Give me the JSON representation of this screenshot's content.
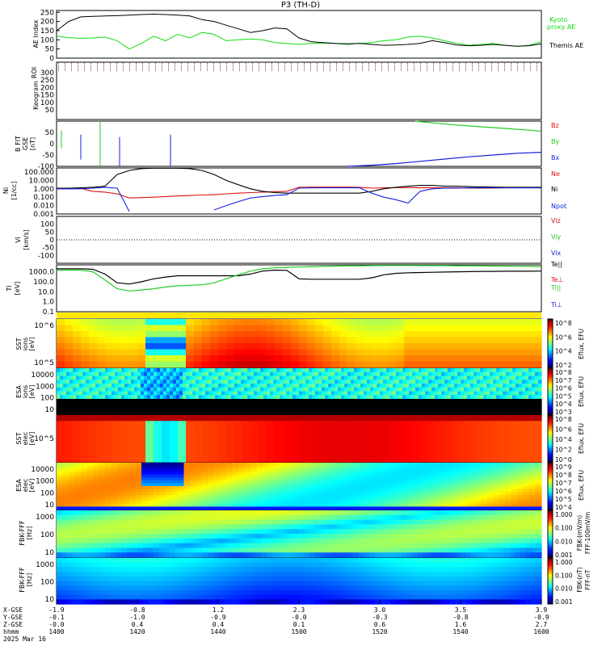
{
  "title": "P3 (TH-D)",
  "colors": {
    "black": "#000000",
    "green": "#22cc22",
    "red": "#dd1111",
    "blue": "#1122dd",
    "kyoto": "#11dd11"
  },
  "time_axis": {
    "range": [
      1400,
      1600
    ],
    "tick_labels": [
      "1400",
      "1420",
      "1440",
      "1500",
      "1520",
      "1540",
      "1600"
    ],
    "x_gse": [
      "-1.9",
      "-0.8",
      "1.2",
      "2.3",
      "3.0",
      "3.5",
      "3.9"
    ],
    "y_gse": [
      "-0.1",
      "-1.0",
      "-0.9",
      "-0.0",
      "-0.3",
      "-0.8",
      "-0.9"
    ],
    "z_gse": [
      "-0.0",
      "0.4",
      "0.4",
      "0.1",
      "0.6",
      "1.6",
      "2.7"
    ],
    "row_labels": [
      "X-GSE",
      "Y-GSE",
      "Z-GSE",
      "hhmm"
    ],
    "date": "2025 Mar 16"
  },
  "chart_data": [
    {
      "type": "line",
      "panel": "ae",
      "ylabel": "AE Index",
      "ylim": [
        0,
        260
      ],
      "yticks": [
        "250",
        "200",
        "150",
        "100",
        "50",
        "0"
      ],
      "legend": [
        "Kyoto",
        "proxy AE",
        "Themis AE"
      ],
      "x": [
        1400,
        1405,
        1410,
        1415,
        1420,
        1425,
        1430,
        1435,
        1440,
        1445,
        1450,
        1455,
        1460,
        1465,
        1470,
        1475,
        1480,
        1485,
        1490,
        1495,
        1500,
        1505,
        1510,
        1515,
        1520,
        1525,
        1530,
        1535,
        1540,
        1545,
        1550,
        1555,
        1560,
        1565,
        1570,
        1575,
        1580,
        1585,
        1590,
        1595,
        1600
      ],
      "series": [
        {
          "name": "Kyoto proxy AE",
          "color": "#11dd11",
          "values": [
            120,
            112,
            108,
            110,
            115,
            95,
            50,
            80,
            120,
            95,
            130,
            110,
            140,
            130,
            95,
            100,
            105,
            100,
            85,
            80,
            75,
            80,
            82,
            80,
            75,
            80,
            85,
            95,
            100,
            115,
            120,
            110,
            95,
            80,
            70,
            75,
            80,
            70,
            65,
            70,
            90
          ]
        },
        {
          "name": "Themis AE",
          "color": "#000000",
          "values": [
            150,
            200,
            225,
            228,
            230,
            232,
            235,
            238,
            240,
            238,
            235,
            230,
            210,
            200,
            180,
            160,
            140,
            150,
            165,
            160,
            110,
            90,
            85,
            80,
            78,
            80,
            75,
            70,
            72,
            75,
            80,
            95,
            85,
            72,
            68,
            70,
            75,
            70,
            65,
            68,
            78
          ]
        }
      ]
    },
    {
      "type": "heatmap",
      "panel": "keogram",
      "ylabel": "Keogram",
      "yticks": [
        "300",
        "250",
        "200",
        "150",
        "100",
        "50"
      ],
      "note": "no data"
    },
    {
      "type": "line",
      "panel": "b_fgm",
      "ylabel": "B FIT GSE [nT]",
      "ylim": [
        -100,
        100
      ],
      "yticks": [
        "50",
        "0",
        "-50",
        "-100"
      ],
      "legend": [
        "Bz",
        "By",
        "Bx"
      ],
      "series": [
        {
          "name": "Bz",
          "color": "#dd1111",
          "values": []
        },
        {
          "name": "By",
          "color": "#22cc22",
          "x": [
            1548,
            1555,
            1565,
            1575,
            1585,
            1595,
            1600
          ],
          "values": [
            100,
            92,
            83,
            75,
            68,
            60,
            55
          ]
        },
        {
          "name": "Bx",
          "color": "#1122dd",
          "x": [
            1520,
            1530,
            1540,
            1550,
            1560,
            1570,
            1580,
            1590,
            1600
          ],
          "values": [
            -100,
            -95,
            -88,
            -78,
            -68,
            -58,
            -50,
            -42,
            -38
          ]
        }
      ]
    },
    {
      "type": "line",
      "panel": "ni",
      "ylabel": "Ni [1/cc]",
      "log": true,
      "ylim": [
        0.001,
        300
      ],
      "yticks": [
        "100.000",
        "10.000",
        "1.000",
        "0.100",
        "0.010",
        "0.001"
      ],
      "legend": [
        "Ne",
        "Ni",
        "Npot"
      ],
      "x": [
        1400,
        1405,
        1410,
        1415,
        1420,
        1425,
        1430,
        1435,
        1440,
        1445,
        1450,
        1455,
        1460,
        1465,
        1470,
        1475,
        1480,
        1485,
        1490,
        1495,
        1500,
        1505,
        1510,
        1515,
        1520,
        1525,
        1530,
        1535,
        1540,
        1545,
        1550,
        1555,
        1560,
        1565,
        1570,
        1575,
        1580,
        1585,
        1590,
        1595,
        1600
      ],
      "series": [
        {
          "name": "Ne",
          "color": "#dd1111",
          "values": [
            1.0,
            1.0,
            1.1,
            0.5,
            0.4,
            0.25,
            0.08,
            0.09,
            0.1,
            0.12,
            0.14,
            0.16,
            0.18,
            0.2,
            0.25,
            0.3,
            0.35,
            0.4,
            0.45,
            0.5,
            1.5,
            1.6,
            1.6,
            1.6,
            1.6,
            1.5,
            1.2,
            1.3,
            1.4,
            1.4,
            1.3,
            1.3,
            1.3,
            1.3,
            1.2,
            1.2,
            1.2,
            1.3,
            1.3,
            1.3,
            1.3
          ]
        },
        {
          "name": "Ni",
          "color": "#000000",
          "values": [
            1.2,
            1.2,
            1.3,
            1.5,
            2.0,
            50,
            150,
            250,
            280,
            280,
            280,
            250,
            150,
            50,
            10,
            3,
            1.0,
            0.5,
            0.35,
            0.3,
            0.3,
            0.3,
            0.3,
            0.3,
            0.3,
            0.3,
            0.5,
            1.0,
            1.5,
            2.0,
            2.5,
            2.5,
            2.0,
            2.0,
            1.8,
            1.7,
            1.6,
            1.5,
            1.5,
            1.5,
            1.5
          ]
        },
        {
          "name": "Npot",
          "color": "#1122dd",
          "values": [
            1.0,
            1.0,
            1.0,
            1.2,
            1.5,
            1.2,
            0.002,
            null,
            null,
            null,
            null,
            null,
            null,
            0.003,
            0.01,
            0.03,
            0.08,
            0.12,
            0.16,
            0.2,
            1.2,
            1.3,
            1.3,
            1.3,
            1.3,
            1.3,
            0.3,
            0.1,
            0.05,
            0.02,
            0.5,
            1.0,
            1.2,
            1.2,
            1.3,
            1.3,
            1.3,
            1.3,
            1.3,
            1.3,
            1.3
          ]
        }
      ]
    },
    {
      "type": "line",
      "panel": "vi",
      "ylabel": "Vi [km/s]",
      "ylim": [
        -150,
        150
      ],
      "yticks": [
        "100",
        "50",
        "0",
        "-50",
        "-100"
      ],
      "legend": [
        "Viz",
        "Viy",
        "Vix"
      ],
      "series": []
    },
    {
      "type": "line",
      "panel": "ti",
      "ylabel": "Ti [eV]",
      "log": true,
      "ylim": [
        0.1,
        5000
      ],
      "yticks": [
        "1000.0",
        "100.0",
        "10.0",
        "1.0",
        "0.1"
      ],
      "legend": [
        "Te||",
        "Te⊥",
        "Ti||",
        "Ti⊥"
      ],
      "x": [
        1400,
        1405,
        1410,
        1415,
        1420,
        1425,
        1430,
        1435,
        1440,
        1445,
        1450,
        1455,
        1460,
        1465,
        1470,
        1475,
        1480,
        1485,
        1490,
        1495,
        1500,
        1505,
        1510,
        1515,
        1520,
        1525,
        1530,
        1535,
        1540,
        1545,
        1550,
        1555,
        1560,
        1565,
        1570,
        1575,
        1580,
        1585,
        1590,
        1595,
        1600
      ],
      "series": [
        {
          "name": "Te||",
          "color": "#000000",
          "values": [
            2000,
            2000,
            2000,
            1800,
            600,
            80,
            60,
            100,
            200,
            300,
            400,
            400,
            400,
            400,
            400,
            400,
            600,
            1200,
            1500,
            1400,
            200,
            180,
            180,
            180,
            180,
            180,
            250,
            500,
            700,
            800,
            850,
            900,
            950,
            1000,
            1050,
            1100,
            1100,
            1150,
            1150,
            1150,
            1200
          ]
        },
        {
          "name": "Ti||",
          "color": "#22cc22",
          "values": [
            1500,
            1500,
            1500,
            1000,
            150,
            20,
            12,
            15,
            20,
            30,
            40,
            45,
            50,
            80,
            200,
            500,
            1200,
            2000,
            2500,
            2800,
            3000,
            3200,
            3500,
            3800,
            4000,
            4000,
            4200,
            4300,
            4300,
            4300,
            4200,
            4200,
            4200,
            4100,
            4000,
            3900,
            3800,
            3700,
            3600,
            3500,
            3400
          ]
        }
      ]
    },
    {
      "type": "heatmap",
      "panel": "sst_ions",
      "ylabel": "SST ions [eV]",
      "colorbar": {
        "label": "Eflux, EFU",
        "ticks": [
          "10^8",
          "10^6",
          "10^4",
          "10^2"
        ]
      },
      "yticks": [
        "10^6",
        "10^5"
      ]
    },
    {
      "type": "heatmap",
      "panel": "esa_ions",
      "ylabel": "ESA ions [eV]",
      "yticks": [
        "10000",
        "1000",
        "100",
        "10"
      ],
      "colorbar": {
        "label": "Eflux, EFU",
        "ticks": [
          "10^8",
          "10^7",
          "10^6",
          "10^5",
          "10^4",
          "10^3"
        ]
      }
    },
    {
      "type": "heatmap",
      "panel": "sst_elec",
      "ylabel": "SST elec [eV]",
      "yticks": [
        "10^5"
      ],
      "colorbar": {
        "label": "Eflux, EFU",
        "ticks": [
          "10^8",
          "10^6",
          "10^4",
          "10^2",
          "10^0"
        ]
      }
    },
    {
      "type": "heatmap",
      "panel": "esa_elec",
      "ylabel": "ESA elec [eV]",
      "yticks": [
        "10000",
        "1000",
        "100",
        "10"
      ],
      "colorbar": {
        "label": "Eflux, EFU",
        "ticks": [
          "10^9",
          "10^8",
          "10^7",
          "10^6",
          "10^5",
          "10^4"
        ]
      }
    },
    {
      "type": "heatmap",
      "panel": "fbk_fff_e",
      "ylabel": "FBK-FFF [Hz]",
      "yticks": [
        "1000",
        "100",
        "10"
      ],
      "colorbar": {
        "label": "FBK-(mV/m)",
        "ticks": [
          "1.000",
          "0.100",
          "0.010",
          "0.001"
        ]
      }
    },
    {
      "type": "heatmap",
      "panel": "fbk_fff_b",
      "ylabel": "FBK-FFF [Hz]",
      "yticks": [
        "1000",
        "100",
        "10"
      ],
      "colorbar": {
        "label": "FBK-(nT)",
        "ticks": [
          "1.000",
          "0.100",
          "0.010",
          "0.001"
        ]
      }
    }
  ],
  "labels": {
    "ae_legend_1": "Kyoto",
    "ae_legend_2": "proxy AE",
    "ae_legend_3": "Themis AE",
    "ae_ylabel": "AE Index",
    "keo_ylabel": "Keogram",
    "keo_top": "ROI",
    "b_ylabel_1": "B FIT",
    "b_ylabel_2": "GSE",
    "b_ylabel_3": "[nT]",
    "b_leg_z": "Bz",
    "b_leg_y": "By",
    "b_leg_x": "Bx",
    "ni_ylabel_1": "Ni",
    "ni_ylabel_2": "[1/cc]",
    "ni_leg_ne": "Ne",
    "ni_leg_ni": "Ni",
    "ni_leg_npot": "Npot",
    "vi_ylabel_1": "Vi",
    "vi_ylabel_2": "[km/s]",
    "vi_leg_z": "Viz",
    "vi_leg_y": "Viy",
    "vi_leg_x": "Vix",
    "ti_ylabel_1": "Ti",
    "ti_ylabel_2": "[eV]",
    "ti_leg_1": "Te||",
    "ti_leg_2": "Te⊥",
    "ti_leg_3": "Ti||",
    "ti_leg_4": "Ti⊥",
    "sst_i_ylabel_1": "SST",
    "sst_i_ylabel_2": "ions",
    "sst_i_ylabel_3": "[eV]",
    "esa_i_ylabel_1": "ESA",
    "esa_i_ylabel_2": "ions",
    "esa_i_ylabel_3": "[eV]",
    "sst_e_ylabel_1": "SST",
    "sst_e_ylabel_2": "elec",
    "sst_e_ylabel_3": "[eV]",
    "esa_e_ylabel_1": "ESA",
    "esa_e_ylabel_2": "elec",
    "esa_e_ylabel_3": "[eV]",
    "fbk1_ylabel_1": "FBK-FFF",
    "fbk1_ylabel_2": "[Hz]",
    "fbk2_ylabel_1": "FBK-FFF",
    "fbk2_ylabel_2": "[Hz]",
    "cb1_label": "Eflux, EFU",
    "cb2_label": "Eflux, EFU",
    "cb3_label": "Eflux, EFU",
    "cb4_label": "Eflux, EFU",
    "cb5_label_1": "FBK-(mV/m)",
    "cb5_label_2": "FFF-100mV/m",
    "cb6_label_1": "FBK-(nT)",
    "cb6_label_2": "FFF-nT"
  }
}
